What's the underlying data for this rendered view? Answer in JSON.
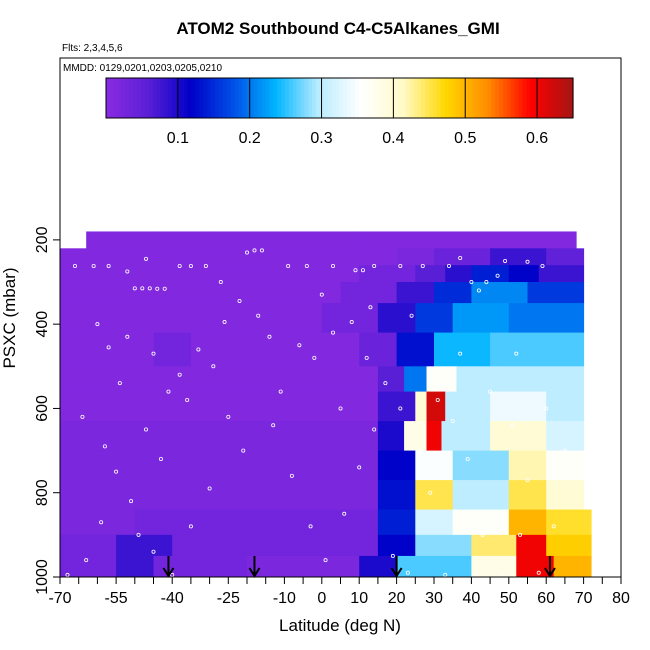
{
  "chart_data": {
    "type": "heatmap",
    "title": "ATOM2 Southbound C4-C5Alkanes_GMI",
    "subtitle_flights": "Flts: 2,3,4,5,6",
    "subtitle_dates": "MMDD: 0129,0201,0203,0205,0210",
    "xlabel": "Latitude (deg N)",
    "ylabel": "PSXC (mbar)",
    "xlim": [
      -70,
      80
    ],
    "ylim": [
      1000,
      100
    ],
    "x_ticks": [
      "-70",
      "-55",
      "-40",
      "-25",
      "-10",
      "0",
      "10",
      "20",
      "30",
      "40",
      "50",
      "60",
      "70",
      "80"
    ],
    "x_tick_values": [
      -70,
      -55,
      -40,
      -25,
      -10,
      0,
      10,
      20,
      30,
      40,
      50,
      60,
      70,
      80
    ],
    "x_minor_ticks": [
      -65,
      -60,
      -50,
      -45,
      -35,
      -30,
      -20,
      -15,
      -5,
      5,
      15,
      25,
      35,
      45,
      55,
      65,
      75
    ],
    "y_ticks": [
      "200",
      "400",
      "600",
      "800",
      "1000"
    ],
    "y_tick_values": [
      200,
      400,
      600,
      800,
      1000
    ],
    "colorbar": {
      "range": [
        0,
        0.65
      ],
      "ticks": [
        "0.1",
        "0.2",
        "0.3",
        "0.4",
        "0.5",
        "0.6"
      ],
      "tick_values": [
        0.1,
        0.2,
        0.3,
        0.4,
        0.5,
        0.6
      ],
      "colors": [
        "#8a2be2",
        "#5a1fd6",
        "#0000c8",
        "#0050e6",
        "#00b4ff",
        "#b8ecff",
        "#ffffff",
        "#fffac8",
        "#ffd700",
        "#ff8c00",
        "#ff0000",
        "#a51515"
      ]
    },
    "layers": [
      {
        "pmin": 180,
        "pmax": 220,
        "cells": [
          {
            "x0": -63,
            "x1": -45,
            "v": 0.01
          },
          {
            "x0": -45,
            "x1": -30,
            "v": 0.01
          },
          {
            "x0": -30,
            "x1": 10,
            "v": 0.01
          },
          {
            "x0": 10,
            "x1": 68,
            "v": 0.01
          }
        ]
      },
      {
        "pmin": 220,
        "pmax": 260,
        "cells": [
          {
            "x0": -70,
            "x1": -35,
            "v": 0.01
          },
          {
            "x0": -35,
            "x1": 20,
            "v": 0.01
          },
          {
            "x0": 20,
            "x1": 30,
            "v": 0.02
          },
          {
            "x0": 30,
            "x1": 45,
            "v": 0.04
          },
          {
            "x0": 45,
            "x1": 60,
            "v": 0.08
          },
          {
            "x0": 60,
            "x1": 70,
            "v": 0.05
          }
        ]
      },
      {
        "pmin": 260,
        "pmax": 300,
        "cells": [
          {
            "x0": -70,
            "x1": 10,
            "v": 0.01
          },
          {
            "x0": 10,
            "x1": 25,
            "v": 0.03
          },
          {
            "x0": 25,
            "x1": 33,
            "v": 0.06
          },
          {
            "x0": 33,
            "x1": 40,
            "v": 0.09
          },
          {
            "x0": 40,
            "x1": 50,
            "v": 0.14
          },
          {
            "x0": 50,
            "x1": 58,
            "v": 0.12
          },
          {
            "x0": 58,
            "x1": 70,
            "v": 0.08
          }
        ]
      },
      {
        "pmin": 300,
        "pmax": 350,
        "cells": [
          {
            "x0": -70,
            "x1": 5,
            "v": 0.01
          },
          {
            "x0": 5,
            "x1": 20,
            "v": 0.03
          },
          {
            "x0": 20,
            "x1": 30,
            "v": 0.08
          },
          {
            "x0": 30,
            "x1": 40,
            "v": 0.15
          },
          {
            "x0": 40,
            "x1": 55,
            "v": 0.21
          },
          {
            "x0": 55,
            "x1": 70,
            "v": 0.16
          }
        ]
      },
      {
        "pmin": 350,
        "pmax": 420,
        "cells": [
          {
            "x0": -70,
            "x1": 0,
            "v": 0.01
          },
          {
            "x0": 0,
            "x1": 15,
            "v": 0.03
          },
          {
            "x0": 15,
            "x1": 25,
            "v": 0.09
          },
          {
            "x0": 25,
            "x1": 35,
            "v": 0.16
          },
          {
            "x0": 35,
            "x1": 50,
            "v": 0.22
          },
          {
            "x0": 50,
            "x1": 70,
            "v": 0.2
          }
        ]
      },
      {
        "pmin": 420,
        "pmax": 500,
        "cells": [
          {
            "x0": -70,
            "x1": -45,
            "v": 0.01
          },
          {
            "x0": -45,
            "x1": -35,
            "v": 0.03
          },
          {
            "x0": -35,
            "x1": 10,
            "v": 0.01
          },
          {
            "x0": 10,
            "x1": 20,
            "v": 0.04
          },
          {
            "x0": 20,
            "x1": 30,
            "v": 0.13
          },
          {
            "x0": 30,
            "x1": 45,
            "v": 0.24
          },
          {
            "x0": 45,
            "x1": 70,
            "v": 0.26
          }
        ]
      },
      {
        "pmin": 500,
        "pmax": 560,
        "cells": [
          {
            "x0": -70,
            "x1": 15,
            "v": 0.01
          },
          {
            "x0": 15,
            "x1": 22,
            "v": 0.06
          },
          {
            "x0": 22,
            "x1": 28,
            "v": 0.2
          },
          {
            "x0": 28,
            "x1": 36,
            "v": 0.36
          },
          {
            "x0": 36,
            "x1": 48,
            "v": 0.3
          },
          {
            "x0": 48,
            "x1": 70,
            "v": 0.3
          }
        ]
      },
      {
        "pmin": 560,
        "pmax": 630,
        "cells": [
          {
            "x0": -70,
            "x1": 15,
            "v": 0.01
          },
          {
            "x0": 15,
            "x1": 25,
            "v": 0.08
          },
          {
            "x0": 25,
            "x1": 28,
            "v": 0.4
          },
          {
            "x0": 28,
            "x1": 33,
            "v": 0.62
          },
          {
            "x0": 33,
            "x1": 45,
            "v": 0.3
          },
          {
            "x0": 45,
            "x1": 60,
            "v": 0.34
          },
          {
            "x0": 60,
            "x1": 70,
            "v": 0.3
          }
        ]
      },
      {
        "pmin": 630,
        "pmax": 700,
        "cells": [
          {
            "x0": -70,
            "x1": 15,
            "v": 0.02
          },
          {
            "x0": 15,
            "x1": 22,
            "v": 0.1
          },
          {
            "x0": 22,
            "x1": 28,
            "v": 0.38
          },
          {
            "x0": 28,
            "x1": 32,
            "v": 0.6
          },
          {
            "x0": 32,
            "x1": 45,
            "v": 0.3
          },
          {
            "x0": 45,
            "x1": 60,
            "v": 0.4
          },
          {
            "x0": 60,
            "x1": 70,
            "v": 0.32
          }
        ]
      },
      {
        "pmin": 700,
        "pmax": 770,
        "cells": [
          {
            "x0": -70,
            "x1": 15,
            "v": 0.02
          },
          {
            "x0": 15,
            "x1": 25,
            "v": 0.12
          },
          {
            "x0": 25,
            "x1": 35,
            "v": 0.35
          },
          {
            "x0": 35,
            "x1": 50,
            "v": 0.28
          },
          {
            "x0": 50,
            "x1": 60,
            "v": 0.42
          },
          {
            "x0": 60,
            "x1": 70,
            "v": 0.36
          }
        ]
      },
      {
        "pmin": 770,
        "pmax": 840,
        "cells": [
          {
            "x0": -70,
            "x1": 15,
            "v": 0.02
          },
          {
            "x0": 15,
            "x1": 25,
            "v": 0.13
          },
          {
            "x0": 25,
            "x1": 35,
            "v": 0.45
          },
          {
            "x0": 35,
            "x1": 50,
            "v": 0.3
          },
          {
            "x0": 50,
            "x1": 60,
            "v": 0.45
          },
          {
            "x0": 60,
            "x1": 70,
            "v": 0.4
          }
        ]
      },
      {
        "pmin": 840,
        "pmax": 900,
        "cells": [
          {
            "x0": -70,
            "x1": -50,
            "v": 0.02
          },
          {
            "x0": -50,
            "x1": 15,
            "v": 0.03
          },
          {
            "x0": 15,
            "x1": 25,
            "v": 0.14
          },
          {
            "x0": 25,
            "x1": 35,
            "v": 0.32
          },
          {
            "x0": 35,
            "x1": 50,
            "v": 0.36
          },
          {
            "x0": 50,
            "x1": 60,
            "v": 0.5
          },
          {
            "x0": 60,
            "x1": 72,
            "v": 0.46
          }
        ]
      },
      {
        "pmin": 900,
        "pmax": 950,
        "cells": [
          {
            "x0": -70,
            "x1": -55,
            "v": 0.03
          },
          {
            "x0": -55,
            "x1": -40,
            "v": 0.08
          },
          {
            "x0": -40,
            "x1": 15,
            "v": 0.03
          },
          {
            "x0": 15,
            "x1": 25,
            "v": 0.12
          },
          {
            "x0": 25,
            "x1": 40,
            "v": 0.28
          },
          {
            "x0": 40,
            "x1": 52,
            "v": 0.44
          },
          {
            "x0": 52,
            "x1": 60,
            "v": 0.6
          },
          {
            "x0": 60,
            "x1": 72,
            "v": 0.48
          }
        ]
      },
      {
        "pmin": 950,
        "pmax": 1010,
        "cells": [
          {
            "x0": -70,
            "x1": -55,
            "v": 0.03
          },
          {
            "x0": -55,
            "x1": -45,
            "v": 0.08
          },
          {
            "x0": -45,
            "x1": -20,
            "v": 0.03
          },
          {
            "x0": -20,
            "x1": 10,
            "v": 0.02
          },
          {
            "x0": 10,
            "x1": 20,
            "v": 0.1
          },
          {
            "x0": 20,
            "x1": 40,
            "v": 0.26
          },
          {
            "x0": 40,
            "x1": 52,
            "v": 0.38
          },
          {
            "x0": 52,
            "x1": 62,
            "v": 0.6
          },
          {
            "x0": 62,
            "x1": 72,
            "v": 0.5
          }
        ]
      }
    ],
    "sample_points": [
      {
        "x": -66,
        "y": 262
      },
      {
        "x": -61,
        "y": 262
      },
      {
        "x": -57,
        "y": 262
      },
      {
        "x": -52,
        "y": 275
      },
      {
        "x": -50,
        "y": 315
      },
      {
        "x": -48,
        "y": 315
      },
      {
        "x": -46,
        "y": 315
      },
      {
        "x": -44,
        "y": 316
      },
      {
        "x": -42,
        "y": 316
      },
      {
        "x": -47,
        "y": 245
      },
      {
        "x": -38,
        "y": 262
      },
      {
        "x": -35,
        "y": 262
      },
      {
        "x": -31,
        "y": 262
      },
      {
        "x": -20,
        "y": 230
      },
      {
        "x": -18,
        "y": 225
      },
      {
        "x": -16,
        "y": 225
      },
      {
        "x": -9,
        "y": 262
      },
      {
        "x": -4,
        "y": 262
      },
      {
        "x": 3,
        "y": 262
      },
      {
        "x": 9,
        "y": 272
      },
      {
        "x": 11,
        "y": 272
      },
      {
        "x": 14,
        "y": 262
      },
      {
        "x": 21,
        "y": 262
      },
      {
        "x": 27,
        "y": 262
      },
      {
        "x": 34,
        "y": 262
      },
      {
        "x": 37,
        "y": 243
      },
      {
        "x": 40,
        "y": 300
      },
      {
        "x": 42,
        "y": 320
      },
      {
        "x": 44,
        "y": 300
      },
      {
        "x": 47,
        "y": 285
      },
      {
        "x": 49,
        "y": 250
      },
      {
        "x": 55,
        "y": 252
      },
      {
        "x": 59,
        "y": 262
      },
      {
        "x": -60,
        "y": 400
      },
      {
        "x": -57,
        "y": 455
      },
      {
        "x": -52,
        "y": 430
      },
      {
        "x": -45,
        "y": 470
      },
      {
        "x": -41,
        "y": 560
      },
      {
        "x": -38,
        "y": 520
      },
      {
        "x": -33,
        "y": 460
      },
      {
        "x": -29,
        "y": 500
      },
      {
        "x": -26,
        "y": 395
      },
      {
        "x": -22,
        "y": 345
      },
      {
        "x": -17,
        "y": 380
      },
      {
        "x": -14,
        "y": 430
      },
      {
        "x": -6,
        "y": 450
      },
      {
        "x": -2,
        "y": 480
      },
      {
        "x": 3,
        "y": 420
      },
      {
        "x": 8,
        "y": 395
      },
      {
        "x": 13,
        "y": 360
      },
      {
        "x": 17,
        "y": 540
      },
      {
        "x": 21,
        "y": 600
      },
      {
        "x": 26,
        "y": 700
      },
      {
        "x": 29,
        "y": 800
      },
      {
        "x": 31,
        "y": 580
      },
      {
        "x": 35,
        "y": 630
      },
      {
        "x": 39,
        "y": 720
      },
      {
        "x": 43,
        "y": 900
      },
      {
        "x": 47,
        "y": 860
      },
      {
        "x": 51,
        "y": 640
      },
      {
        "x": 55,
        "y": 770
      },
      {
        "x": 58,
        "y": 990
      },
      {
        "x": 62,
        "y": 880
      },
      {
        "x": 65,
        "y": 700
      },
      {
        "x": -64,
        "y": 620
      },
      {
        "x": -58,
        "y": 690
      },
      {
        "x": -55,
        "y": 750
      },
      {
        "x": -51,
        "y": 820
      },
      {
        "x": -49,
        "y": 900
      },
      {
        "x": -45,
        "y": 940
      },
      {
        "x": -40,
        "y": 995
      },
      {
        "x": -35,
        "y": 880
      },
      {
        "x": -30,
        "y": 790
      },
      {
        "x": -25,
        "y": 620
      },
      {
        "x": -21,
        "y": 700
      },
      {
        "x": -13,
        "y": 640
      },
      {
        "x": -8,
        "y": 760
      },
      {
        "x": -3,
        "y": 880
      },
      {
        "x": 1,
        "y": 960
      },
      {
        "x": 6,
        "y": 850
      },
      {
        "x": 10,
        "y": 740
      },
      {
        "x": 14,
        "y": 650
      },
      {
        "x": 19,
        "y": 950
      },
      {
        "x": 23,
        "y": 990
      },
      {
        "x": 33,
        "y": 995
      },
      {
        "x": 41,
        "y": 995
      },
      {
        "x": 48,
        "y": 995
      },
      {
        "x": 53,
        "y": 900
      },
      {
        "x": -68,
        "y": 995
      },
      {
        "x": -63,
        "y": 960
      },
      {
        "x": -59,
        "y": 870
      },
      {
        "x": -54,
        "y": 540
      },
      {
        "x": -47,
        "y": 650
      },
      {
        "x": -43,
        "y": 720
      },
      {
        "x": -36,
        "y": 580
      },
      {
        "x": -27,
        "y": 300
      },
      {
        "x": -11,
        "y": 560
      },
      {
        "x": 0,
        "y": 330
      },
      {
        "x": 5,
        "y": 600
      },
      {
        "x": 12,
        "y": 480
      },
      {
        "x": 24,
        "y": 380
      },
      {
        "x": 37,
        "y": 470
      },
      {
        "x": 45,
        "y": 560
      },
      {
        "x": 52,
        "y": 470
      },
      {
        "x": 60,
        "y": 600
      }
    ],
    "flight_arrows_lat": [
      -41,
      -18,
      20,
      61
    ]
  }
}
